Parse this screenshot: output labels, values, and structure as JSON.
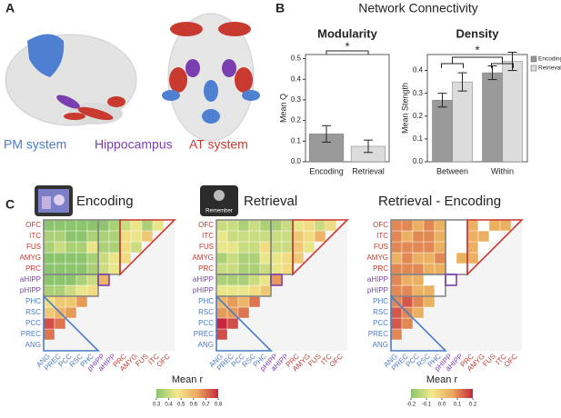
{
  "panel_labels": [
    "A",
    "B",
    "C"
  ],
  "panel_a": {
    "labels": [
      {
        "text": "PM system",
        "color": "#4a7cc7"
      },
      {
        "text": "Hippocampus",
        "color": "#7b3fb0"
      },
      {
        "text": "AT system",
        "color": "#c8392f"
      }
    ]
  },
  "panel_b": {
    "title": "Network Connectivity"
  },
  "chart_data": [
    {
      "type": "bar",
      "title": "Modularity",
      "y_label": "Mean Q",
      "categories": [
        "Encoding",
        "Retrieval"
      ],
      "values": [
        0.135,
        0.075
      ],
      "errors": [
        0.04,
        0.03
      ],
      "colors": [
        "#9a9a9a",
        "#dcdcdc"
      ],
      "ylim": [
        0,
        0.52
      ],
      "yticks": [
        {
          "value": 0,
          "label": "0.0"
        },
        0.1,
        0.2,
        0.3,
        0.4,
        0.5
      ],
      "annotation": "*"
    },
    {
      "type": "grouped_bar",
      "title": "Density",
      "y_label": "Mean Stength",
      "categories": [
        "Between",
        "Within"
      ],
      "series": [
        {
          "name": "Encoding",
          "color": "#9a9a9a",
          "values": [
            0.27,
            0.39
          ],
          "errors": [
            0.03,
            0.03
          ]
        },
        {
          "name": "Retrieval",
          "color": "#dcdcdc",
          "values": [
            0.35,
            0.44
          ],
          "errors": [
            0.04,
            0.04
          ]
        }
      ],
      "ylim": [
        0,
        0.47
      ],
      "yticks": [
        {
          "value": 0,
          "label": "0.0"
        },
        0.1,
        0.2,
        0.3,
        0.4
      ],
      "legend": "top-right",
      "annotation": "*"
    }
  ],
  "panel_c": {
    "regions": [
      {
        "name": "ANG",
        "color": "#4a7cc7"
      },
      {
        "name": "PREC",
        "color": "#4a7cc7"
      },
      {
        "name": "PCC",
        "color": "#4a7cc7"
      },
      {
        "name": "RSC",
        "color": "#4a7cc7"
      },
      {
        "name": "PHC",
        "color": "#4a7cc7"
      },
      {
        "name": "pHIPP",
        "color": "#7b3fb0"
      },
      {
        "name": "aHIPP",
        "color": "#7b3fb0"
      },
      {
        "name": "PRC",
        "color": "#c8392f"
      },
      {
        "name": "AMYG",
        "color": "#c8392f"
      },
      {
        "name": "FUS",
        "color": "#c8392f"
      },
      {
        "name": "ITC",
        "color": "#c8392f"
      },
      {
        "name": "OFC",
        "color": "#c8392f"
      }
    ],
    "icon_text": "Remember",
    "colorbars": [
      {
        "label": "Mean r",
        "lim": [
          0.3,
          0.8
        ],
        "ticks": [
          0.3,
          0.4,
          0.5,
          0.6,
          0.7,
          0.8
        ],
        "colors": [
          "#8cc56d",
          "#f3e98c",
          "#eba85c",
          "#c5283d"
        ]
      },
      {
        "label": "Mean r",
        "lim": [
          -0.2,
          0.2
        ],
        "ticks": [
          -0.2,
          -0.1,
          {
            "value": 0,
            "label": "0.0"
          },
          0.1,
          0.2
        ],
        "colors": [
          "#8cc56d",
          "#f3e98c",
          "#eba85c",
          "#c5283d"
        ]
      }
    ],
    "matrices": [
      {
        "title": "Encoding",
        "colorbar": 0,
        "values": [
          [
            0.7
          ],
          [
            0.75,
            0.7
          ],
          [
            0.55,
            0.6,
            0.65
          ],
          [
            0.5,
            0.55,
            0.55,
            0.65
          ],
          [
            0.35,
            0.35,
            0.4,
            0.45,
            0.5
          ],
          [
            0.3,
            0.3,
            0.3,
            0.35,
            0.4,
            0.6
          ],
          [
            0.3,
            0.3,
            0.3,
            0.3,
            0.35,
            0.4,
            0.45
          ],
          [
            0.3,
            0.3,
            0.3,
            0.3,
            0.35,
            0.4,
            0.45,
            0.5
          ],
          [
            0.35,
            0.4,
            0.35,
            0.35,
            0.45,
            0.35,
            0.35,
            0.5,
            0.4
          ],
          [
            0.35,
            0.35,
            0.3,
            0.3,
            0.35,
            0.35,
            0.35,
            0.5,
            0.45,
            0.55
          ],
          [
            0.3,
            0.3,
            0.3,
            0.3,
            0.3,
            0.3,
            0.35,
            0.4,
            0.45,
            0.35,
            0.45
          ]
        ]
      },
      {
        "title": "Retrieval",
        "colorbar": 0,
        "values": [
          [
            0.75
          ],
          [
            0.8,
            0.75
          ],
          [
            0.65,
            0.65,
            0.7
          ],
          [
            0.6,
            0.65,
            0.6,
            0.7
          ],
          [
            0.45,
            0.45,
            0.45,
            0.5,
            0.55
          ],
          [
            0.35,
            0.35,
            0.35,
            0.4,
            0.45,
            0.65
          ],
          [
            0.4,
            0.4,
            0.35,
            0.35,
            0.4,
            0.45,
            0.5
          ],
          [
            0.35,
            0.4,
            0.35,
            0.35,
            0.45,
            0.45,
            0.5,
            0.55
          ],
          [
            0.45,
            0.45,
            0.4,
            0.4,
            0.5,
            0.4,
            0.4,
            0.55,
            0.45
          ],
          [
            0.45,
            0.4,
            0.4,
            0.4,
            0.4,
            0.4,
            0.4,
            0.55,
            0.5,
            0.6
          ],
          [
            0.4,
            0.4,
            0.35,
            0.4,
            0.35,
            0.35,
            0.4,
            0.45,
            0.5,
            0.4,
            0.5
          ]
        ]
      },
      {
        "title": "Retrieval - Encoding",
        "colorbar": 1,
        "values": [
          [
            0.1
          ],
          [
            0.15,
            0.1
          ],
          [
            0.15,
            0.1,
            0.05
          ],
          [
            0.1,
            0.15,
            0.1,
            0.05
          ],
          [
            0.1,
            0.1,
            0.05,
            0.05,
            null
          ],
          [
            0.1,
            0.05,
            0.05,
            null,
            null,
            null
          ],
          [
            0.1,
            0.1,
            0.1,
            0.05,
            0.05,
            null,
            null
          ],
          [
            0.05,
            0.1,
            0.05,
            0.05,
            0.1,
            null,
            0.05,
            0.05
          ],
          [
            0.1,
            0.1,
            0.1,
            0.1,
            0.05,
            null,
            null,
            0.05,
            null
          ],
          [
            0.1,
            0.05,
            0.1,
            0.1,
            0.05,
            null,
            null,
            0.05,
            0.05,
            null
          ],
          [
            0.1,
            0.1,
            0.05,
            0.1,
            0.05,
            null,
            null,
            0.05,
            null,
            0.05,
            0.05
          ]
        ]
      }
    ]
  }
}
